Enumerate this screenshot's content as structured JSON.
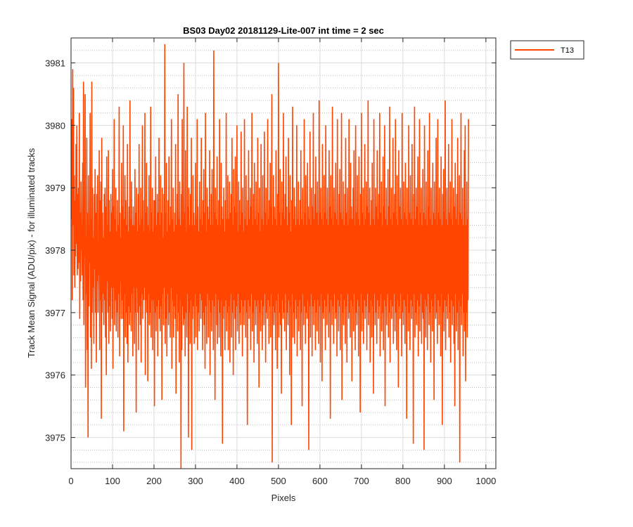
{
  "chart_data": {
    "type": "line",
    "title": "BS03 Day02 20181129-Lite-007 int time = 2 sec",
    "xlabel": "Pixels",
    "ylabel": "Track Mean Signal (ADU/pix) - for illuminated tracks",
    "xlim": [
      0,
      1024
    ],
    "ylim": [
      3974.5,
      3981.4
    ],
    "xticks": [
      0,
      100,
      200,
      300,
      400,
      500,
      600,
      700,
      800,
      900,
      1000
    ],
    "yticks": [
      3975,
      3976,
      3977,
      3978,
      3979,
      3980,
      3981
    ],
    "grid": true,
    "minor_grid": true,
    "legend": {
      "location": "outside-top-right",
      "entries": [
        "T13"
      ]
    },
    "colors": {
      "series": "#FF4500",
      "axes": "#262626",
      "grid": "#dcdcdc"
    },
    "series": [
      {
        "name": "T13",
        "x_start": 1,
        "x_step": 1,
        "values": [
          3978.5,
          3980.1,
          3977.2,
          3980.9,
          3978.4,
          3980.6,
          3977.6,
          3979.2,
          3977.4,
          3978.8,
          3977.9,
          3979.7,
          3978.1,
          3980.0,
          3977.6,
          3978.9,
          3977.7,
          3979.0,
          3977.8,
          3980.2,
          3976.9,
          3978.6,
          3977.5,
          3979.1,
          3978.0,
          3978.3,
          3977.6,
          3979.4,
          3977.2,
          3980.7,
          3976.8,
          3978.5,
          3977.9,
          3980.5,
          3975.8,
          3978.2,
          3977.3,
          3979.8,
          3976.4,
          3978.6,
          3975.0,
          3979.2,
          3977.1,
          3978.4,
          3977.8,
          3980.2,
          3976.6,
          3978.5,
          3976.1,
          3980.7,
          3977.0,
          3979.0,
          3977.4,
          3978.2,
          3976.5,
          3978.9,
          3977.7,
          3979.3,
          3977.0,
          3978.6,
          3976.2,
          3978.9,
          3977.5,
          3979.2,
          3977.0,
          3978.1,
          3977.6,
          3979.6,
          3976.4,
          3978.8,
          3977.2,
          3979.1,
          3975.3,
          3979.8,
          3977.0,
          3978.6,
          3977.3,
          3978.2,
          3976.8,
          3978.9,
          3977.2,
          3979.0,
          3976.6,
          3978.7,
          3976.0,
          3979.5,
          3977.5,
          3978.4,
          3977.0,
          3979.6,
          3976.5,
          3978.8,
          3977.1,
          3978.3,
          3976.7,
          3978.9,
          3977.4,
          3978.6,
          3976.9,
          3979.3,
          3976.1,
          3978.7,
          3977.4,
          3980.1,
          3976.8,
          3978.5,
          3977.2,
          3979.0,
          3976.7,
          3978.3,
          3977.0,
          3978.8,
          3976.6,
          3978.4,
          3977.3,
          3980.3,
          3976.3,
          3978.6,
          3977.5,
          3978.2,
          3976.9,
          3979.4,
          3977.2,
          3978.7,
          3976.9,
          3980.0,
          3975.1,
          3978.5,
          3977.3,
          3979.2,
          3976.6,
          3978.8,
          3977.0,
          3978.4,
          3976.5,
          3979.7,
          3976.2,
          3978.3,
          3977.1,
          3978.7,
          3976.8,
          3980.4,
          3977.0,
          3978.5,
          3976.7,
          3979.1,
          3977.3,
          3978.4,
          3976.3,
          3978.7,
          3977.4,
          3978.4,
          3976.5,
          3979.3,
          3977.0,
          3978.6,
          3975.4,
          3979.0,
          3977.4,
          3978.3,
          3977.0,
          3978.9,
          3976.4,
          3979.7,
          3977.1,
          3978.4,
          3976.8,
          3979.0,
          3976.2,
          3978.5,
          3977.3,
          3980.0,
          3976.9,
          3978.8,
          3977.2,
          3978.3,
          3977.4,
          3980.2,
          3976.0,
          3978.6,
          3977.2,
          3979.4,
          3977.0,
          3978.7,
          3975.9,
          3978.4,
          3977.3,
          3979.2,
          3976.8,
          3978.3,
          3977.0,
          3980.3,
          3976.6,
          3978.6,
          3977.2,
          3979.0,
          3976.4,
          3978.3,
          3977.2,
          3978.8,
          3975.5,
          3978.8,
          3977.0,
          3979.5,
          3976.7,
          3978.4,
          3977.1,
          3978.9,
          3976.3,
          3978.6,
          3977.2,
          3979.8,
          3976.9,
          3978.4,
          3976.7,
          3979.2,
          3977.1,
          3978.6,
          3975.6,
          3979.0,
          3977.3,
          3978.2,
          3976.8,
          3978.9,
          3977.4,
          3981.3,
          3976.5,
          3978.6,
          3976.9,
          3979.4,
          3976.3,
          3978.3,
          3977.3,
          3978.8,
          3976.8,
          3979.5,
          3977.0,
          3978.4,
          3976.6,
          3978.7,
          3977.4,
          3980.1,
          3976.1,
          3978.5,
          3977.2,
          3979.0,
          3976.6,
          3978.3,
          3977.1,
          3978.6,
          3976.9,
          3979.7,
          3975.7,
          3978.4,
          3977.3,
          3978.9,
          3976.7,
          3980.5,
          3977.0,
          3978.5,
          3976.2,
          3979.1,
          3977.2,
          3978.4,
          3974.5,
          3978.9,
          3976.4,
          3980.1,
          3977.1,
          3978.5,
          3976.8,
          3981.0,
          3976.9,
          3978.6,
          3976.3,
          3979.6,
          3977.0,
          3978.3,
          3976.6,
          3980.3,
          3977.3,
          3978.7,
          3975.0,
          3979.0,
          3977.0,
          3978.4,
          3976.5,
          3978.9,
          3977.2,
          3979.8,
          3974.8,
          3978.4,
          3976.9,
          3979.2,
          3977.1,
          3978.6,
          3976.5,
          3978.4,
          3977.3,
          3979.4,
          3976.6,
          3978.5,
          3977.1,
          3980.1,
          3976.4,
          3978.7,
          3977.0,
          3978.3,
          3976.7,
          3979.1,
          3977.3,
          3978.5,
          3976.9,
          3979.8,
          3977.2,
          3978.4,
          3976.4,
          3978.8,
          3977.0,
          3979.3,
          3976.8,
          3978.6,
          3976.1,
          3980.2,
          3977.1,
          3978.3,
          3976.5,
          3979.0,
          3977.3,
          3978.7,
          3976.6,
          3978.5,
          3977.2,
          3979.6,
          3976.0,
          3978.4,
          3977.0,
          3978.9,
          3976.7,
          3979.3,
          3977.2,
          3978.4,
          3976.4,
          3981.2,
          3977.1,
          3978.6,
          3975.6,
          3979.0,
          3977.3,
          3978.5,
          3976.8,
          3979.5,
          3976.5,
          3978.4,
          3977.2,
          3978.8,
          3976.6,
          3980.1,
          3977.0,
          3978.4,
          3976.3,
          3979.4,
          3977.2,
          3978.7,
          3974.9,
          3978.5,
          3976.9,
          3979.0,
          3977.1,
          3978.3,
          3976.4,
          3978.8,
          3977.2,
          3980.2,
          3976.7,
          3978.5,
          3977.0,
          3979.2,
          3976.4,
          3978.5,
          3977.1,
          3979.1,
          3976.2,
          3978.6,
          3977.3,
          3978.9,
          3976.6,
          3979.8,
          3977.0,
          3978.4,
          3976.0,
          3979.3,
          3977.2,
          3978.7,
          3976.9,
          3979.5,
          3976.4,
          3978.6,
          3977.1,
          3980.0,
          3976.7,
          3978.3,
          3977.3,
          3979.1,
          3976.5,
          3978.8,
          3977.0,
          3978.4,
          3976.8,
          3979.9,
          3977.2,
          3978.6,
          3976.3,
          3979.0,
          3977.1,
          3978.3,
          3976.8,
          3980.1,
          3977.2,
          3978.5,
          3976.6,
          3979.2,
          3977.0,
          3978.4,
          3975.2,
          3978.8,
          3977.2,
          3979.6,
          3976.9,
          3978.5,
          3977.1,
          3979.0,
          3976.4,
          3978.7,
          3977.3,
          3980.2,
          3976.7,
          3978.4,
          3977.0,
          3978.9,
          3976.2,
          3979.4,
          3977.2,
          3978.5,
          3976.8,
          3979.1,
          3977.1,
          3978.4,
          3976.5,
          3979.8,
          3977.2,
          3978.6,
          3975.8,
          3979.0,
          3977.0,
          3978.3,
          3976.7,
          3979.7,
          3977.2,
          3978.5,
          3976.4,
          3979.2,
          3977.1,
          3978.4,
          3976.8,
          3979.9,
          3977.3,
          3978.6,
          3976.2,
          3979.0,
          3977.0,
          3978.4,
          3976.9,
          3980.1,
          3977.2,
          3978.5,
          3976.5,
          3978.8,
          3977.1,
          3979.4,
          3976.6,
          3978.7,
          3977.3,
          3980.5,
          3974.6,
          3978.4,
          3977.1,
          3979.2,
          3976.8,
          3978.7,
          3977.0,
          3978.5,
          3976.4,
          3979.6,
          3977.2,
          3978.4,
          3976.1,
          3978.9,
          3977.3,
          3981.0,
          3976.6,
          3978.6,
          3977.0,
          3979.3,
          3976.8,
          3978.4,
          3975.7,
          3979.1,
          3977.2,
          3978.6,
          3976.9,
          3980.2,
          3977.0,
          3978.5,
          3976.7,
          3978.9,
          3977.3,
          3979.5,
          3976.4,
          3978.7,
          3977.0,
          3978.4,
          3976.8,
          3979.8,
          3977.2,
          3978.6,
          3976.0,
          3979.2,
          3977.1,
          3978.3,
          3975.2,
          3978.8,
          3977.3,
          3980.3,
          3976.6,
          3978.5,
          3977.0,
          3979.0,
          3976.5,
          3978.7,
          3977.2,
          3978.4,
          3976.9,
          3980.0,
          3976.3,
          3978.5,
          3977.1,
          3979.1,
          3976.7,
          3978.4,
          3977.2,
          3978.8,
          3976.4,
          3979.6,
          3977.0,
          3978.5,
          3975.5,
          3979.0,
          3977.3,
          3978.4,
          3976.8,
          3980.1,
          3977.1,
          3978.6,
          3976.5,
          3979.2,
          3977.0,
          3978.4,
          3976.9,
          3979.4,
          3977.2,
          3978.7,
          3974.8,
          3978.5,
          3977.1,
          3979.9,
          3976.6,
          3978.4,
          3977.3,
          3979.0,
          3976.3,
          3978.7,
          3977.1,
          3980.2,
          3976.8,
          3978.5,
          3977.2,
          3978.9,
          3976.4,
          3979.5,
          3977.0,
          3978.6,
          3976.7,
          3979.1,
          3977.2,
          3978.4,
          3976.5,
          3980.4,
          3977.1,
          3978.6,
          3976.2,
          3979.0,
          3977.3,
          3978.5,
          3975.9,
          3979.7,
          3977.0,
          3978.4,
          3976.9,
          3979.2,
          3977.2,
          3978.6,
          3976.4,
          3980.0,
          3977.1,
          3978.5,
          3976.8,
          3979.0,
          3977.3,
          3978.4,
          3976.6,
          3979.6,
          3977.0,
          3978.7,
          3975.3,
          3979.2,
          3977.2,
          3978.5,
          3976.8,
          3980.3,
          3977.1,
          3978.4,
          3976.5,
          3979.0,
          3977.3,
          3978.6,
          3976.9,
          3979.4,
          3977.0,
          3978.5,
          3976.3,
          3980.1,
          3977.2,
          3978.4,
          3976.7,
          3978.9,
          3977.1,
          3979.3,
          3976.4,
          3978.6,
          3977.3,
          3980.2,
          3975.6,
          3978.5,
          3977.0,
          3979.1,
          3976.8,
          3978.4,
          3977.2,
          3978.9,
          3976.5,
          3979.8,
          3977.1,
          3978.6,
          3976.2,
          3979.0,
          3977.3,
          3978.4,
          3976.9,
          3980.1,
          3977.0,
          3978.5,
          3976.6,
          3979.4,
          3977.2,
          3978.7,
          3975.9,
          3978.5,
          3977.1,
          3979.0,
          3976.7,
          3979.6,
          3977.3,
          3978.4,
          3976.4,
          3980.0,
          3977.0,
          3978.6,
          3976.8,
          3979.2,
          3977.2,
          3978.5,
          3976.3,
          3979.5,
          3977.1,
          3978.4,
          3975.4,
          3978.9,
          3977.3,
          3980.2,
          3976.7,
          3978.6,
          3977.0,
          3979.0,
          3976.5,
          3978.4,
          3977.2,
          3979.7,
          3976.9,
          3978.5,
          3977.1,
          3979.1,
          3976.4,
          3978.7,
          3977.3,
          3980.4,
          3976.8,
          3978.6,
          3977.0,
          3979.0,
          3976.2,
          3978.4,
          3977.2,
          3978.8,
          3976.6,
          3979.4,
          3977.1,
          3978.5,
          3975.7,
          3980.1,
          3977.3,
          3978.4,
          3976.8,
          3979.0,
          3977.0,
          3978.7,
          3976.5,
          3979.6,
          3977.2,
          3978.5,
          3976.9,
          3978.9,
          3977.1,
          3980.2,
          3976.3,
          3978.6,
          3977.3,
          3979.1,
          3976.7,
          3978.4,
          3977.0,
          3979.5,
          3976.4,
          3978.7,
          3977.2,
          3980.0,
          3975.5,
          3978.5,
          3977.1,
          3979.0,
          3976.8,
          3978.4,
          3977.3,
          3979.3,
          3976.6,
          3978.7,
          3977.0,
          3980.3,
          3976.2,
          3978.5,
          3977.2,
          3979.0,
          3976.9,
          3978.4,
          3977.1,
          3979.8,
          3976.5,
          3978.6,
          3977.3,
          3978.9,
          3976.7,
          3980.1,
          3977.0,
          3978.5,
          3976.4,
          3979.2,
          3977.2,
          3978.4,
          3975.8,
          3979.6,
          3977.1,
          3978.7,
          3976.9,
          3979.0,
          3977.3,
          3978.5,
          3976.3,
          3980.2,
          3977.0,
          3978.4,
          3976.8,
          3979.1,
          3977.2,
          3978.6,
          3976.5,
          3979.4,
          3977.1,
          3978.5,
          3975.3,
          3979.0,
          3977.3,
          3978.4,
          3976.7,
          3980.0,
          3977.0,
          3978.6,
          3976.4,
          3979.2,
          3977.2,
          3978.5,
          3976.9,
          3979.7,
          3977.1,
          3978.4,
          3974.9,
          3978.9,
          3977.3,
          3980.3,
          3976.6,
          3978.5,
          3977.0,
          3979.0,
          3976.8,
          3978.7,
          3977.2,
          3979.5,
          3976.3,
          3978.4,
          3977.1,
          3980.1,
          3976.7,
          3978.6,
          3977.3,
          3979.0,
          3976.5,
          3978.4,
          3977.0,
          3979.3,
          3976.9,
          3978.6,
          3974.8,
          3980.0,
          3977.2,
          3978.5,
          3976.6,
          3979.1,
          3977.1,
          3978.4,
          3976.4,
          3979.6,
          3977.3,
          3978.7,
          3976.8,
          3980.2,
          3977.0,
          3978.5,
          3976.2,
          3979.0,
          3977.2,
          3978.4,
          3976.7,
          3979.4,
          3977.1,
          3978.6,
          3975.6,
          3979.1,
          3977.3,
          3978.5,
          3976.9,
          3979.8,
          3977.0,
          3978.4,
          3976.5,
          3980.1,
          3977.2,
          3978.6,
          3976.8,
          3979.0,
          3977.1,
          3978.5,
          3976.3,
          3979.5,
          3977.3,
          3978.4,
          3975.2,
          3978.9,
          3977.0,
          3979.3,
          3976.7,
          3978.6,
          3977.2,
          3980.4,
          3976.4,
          3978.5,
          3977.1,
          3979.0,
          3976.9,
          3978.4,
          3977.3,
          3979.7,
          3976.6,
          3978.6,
          3977.0,
          3979.1,
          3976.2,
          3978.5,
          3977.2,
          3980.1,
          3976.8,
          3978.4,
          3977.1,
          3979.0,
          3976.5,
          3978.7,
          3975.5,
          3979.4,
          3977.3,
          3978.5,
          3976.7,
          3978.9,
          3977.0,
          3979.8,
          3976.4,
          3978.4,
          3977.2,
          3979.2,
          3974.6,
          3978.6,
          3977.1,
          3980.2,
          3976.8,
          3978.5,
          3977.3,
          3979.0,
          3976.3,
          3978.4,
          3977.0,
          3979.6,
          3976.7,
          3980.0,
          3975.9,
          3978.4,
          3977.0,
          3979.1,
          3976.6,
          3978.5,
          3977.2,
          3980.1
        ]
      }
    ]
  }
}
